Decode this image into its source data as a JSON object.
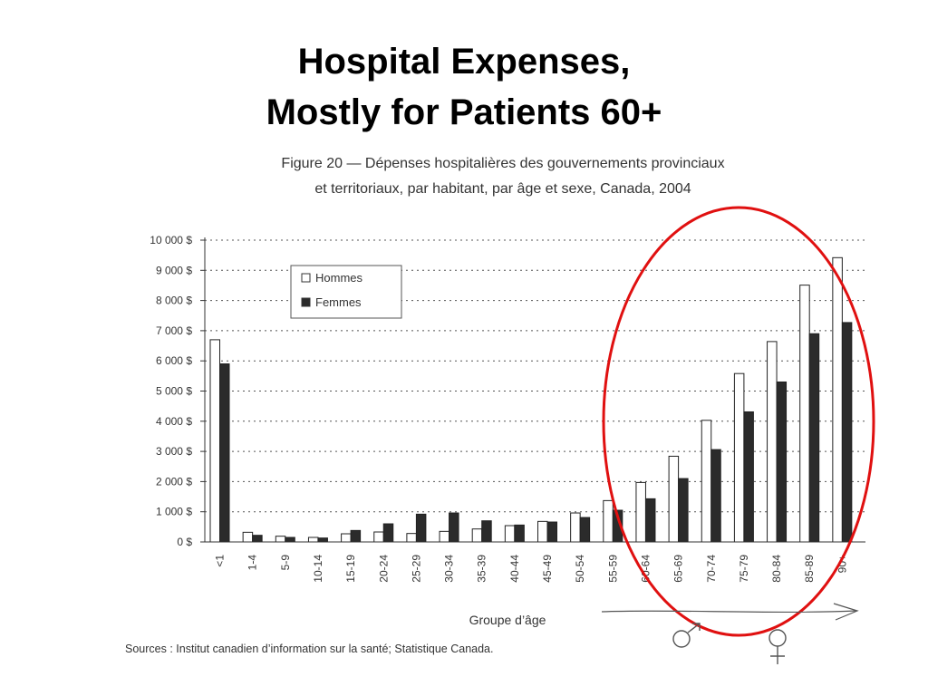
{
  "slide": {
    "title_line1": "Hospital Expenses,",
    "title_line2": "Mostly for Patients 60+"
  },
  "chart_data": {
    "type": "bar",
    "title_line1": "Figure 20 — Dépenses hospitalières des gouvernements provinciaux",
    "title_line2": "et territoriaux, par habitant, par âge et sexe, Canada, 2004",
    "xlabel": "Groupe d’âge",
    "ylabel": "",
    "ylim": [
      0,
      10000
    ],
    "y_ticks": [
      {
        "value": 0,
        "label": "0 $"
      },
      {
        "value": 1000,
        "label": "1 000 $"
      },
      {
        "value": 2000,
        "label": "2 000 $"
      },
      {
        "value": 3000,
        "label": "3 000 $"
      },
      {
        "value": 4000,
        "label": "4 000 $"
      },
      {
        "value": 5000,
        "label": "5 000 $"
      },
      {
        "value": 6000,
        "label": "6 000 $"
      },
      {
        "value": 7000,
        "label": "7 000 $"
      },
      {
        "value": 8000,
        "label": "8 000 $"
      },
      {
        "value": 9000,
        "label": "9 000 $"
      },
      {
        "value": 10000,
        "label": "10 000 $"
      }
    ],
    "grid": true,
    "legend_position": "top-left",
    "categories": [
      "<1",
      "1-4",
      "5-9",
      "10-14",
      "15-19",
      "20-24",
      "25-29",
      "30-34",
      "35-39",
      "40-44",
      "45-49",
      "50-54",
      "55-59",
      "60-64",
      "65-69",
      "70-74",
      "75-79",
      "80-84",
      "85-89",
      "90+"
    ],
    "series": [
      {
        "name": "Hommes",
        "color": "#ffffff",
        "values": [
          6700,
          320,
          190,
          150,
          270,
          330,
          280,
          350,
          430,
          540,
          680,
          960,
          1370,
          1970,
          2840,
          4030,
          5580,
          6640,
          8510,
          9420
        ]
      },
      {
        "name": "Femmes",
        "color": "#2b2b2b",
        "values": [
          5900,
          220,
          150,
          130,
          380,
          600,
          920,
          960,
          700,
          560,
          660,
          810,
          1050,
          1430,
          2100,
          3060,
          4310,
          5300,
          6900,
          7270
        ]
      }
    ],
    "source": "Sources : Institut canadien d’information sur la santé; Statistique Canada.",
    "annotation_color": "#e01010"
  }
}
